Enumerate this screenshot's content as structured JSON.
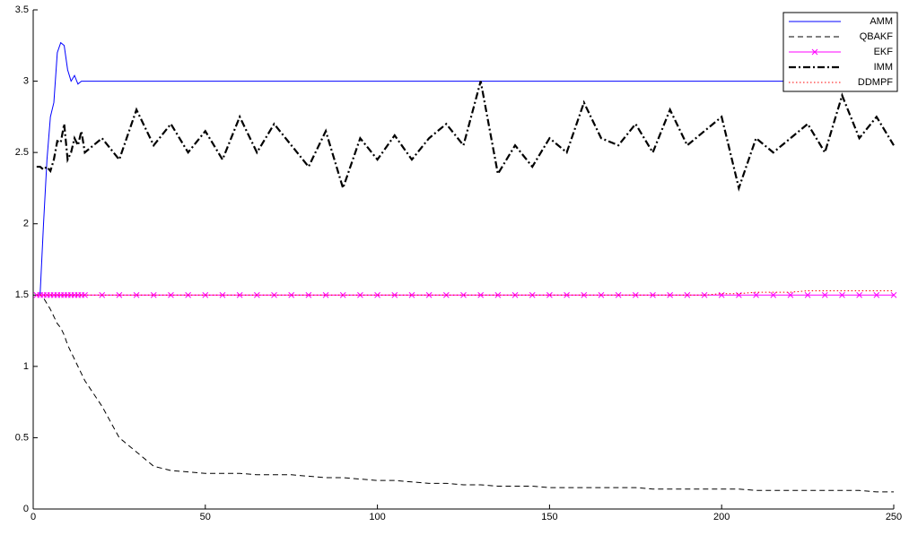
{
  "chart_data": {
    "type": "line",
    "x": [
      1,
      2,
      3,
      4,
      5,
      6,
      7,
      8,
      9,
      10,
      11,
      12,
      13,
      14,
      15,
      20,
      25,
      30,
      35,
      40,
      45,
      50,
      55,
      60,
      65,
      70,
      75,
      80,
      85,
      90,
      95,
      100,
      105,
      110,
      115,
      120,
      125,
      130,
      135,
      140,
      145,
      150,
      155,
      160,
      165,
      170,
      175,
      180,
      185,
      190,
      195,
      200,
      205,
      210,
      215,
      220,
      225,
      230,
      235,
      240,
      245,
      250
    ],
    "series": [
      {
        "name": "AMM",
        "color": "#0000ff",
        "style": "solid",
        "values": [
          1.5,
          1.5,
          2.0,
          2.45,
          2.75,
          2.85,
          3.2,
          3.27,
          3.25,
          3.08,
          3.0,
          3.04,
          2.98,
          3.0,
          3.0,
          3.0,
          3.0,
          3.0,
          3.0,
          3.0,
          3.0,
          3.0,
          3.0,
          3.0,
          3.0,
          3.0,
          3.0,
          3.0,
          3.0,
          3.0,
          3.0,
          3.0,
          3.0,
          3.0,
          3.0,
          3.0,
          3.0,
          3.0,
          3.0,
          3.0,
          3.0,
          3.0,
          3.0,
          3.0,
          3.0,
          3.0,
          3.0,
          3.0,
          3.0,
          3.0,
          3.0,
          3.0,
          3.0,
          3.0,
          3.0,
          3.0,
          3.0,
          3.0,
          3.0,
          3.0,
          3.0,
          3.0
        ]
      },
      {
        "name": "QBAKF",
        "color": "#000000",
        "style": "dashed",
        "values": [
          1.5,
          1.5,
          1.48,
          1.44,
          1.4,
          1.35,
          1.3,
          1.27,
          1.22,
          1.15,
          1.1,
          1.05,
          1.0,
          0.95,
          0.9,
          0.72,
          0.5,
          0.4,
          0.3,
          0.27,
          0.26,
          0.25,
          0.25,
          0.25,
          0.24,
          0.24,
          0.24,
          0.23,
          0.22,
          0.22,
          0.21,
          0.2,
          0.2,
          0.19,
          0.18,
          0.18,
          0.17,
          0.17,
          0.16,
          0.16,
          0.16,
          0.15,
          0.15,
          0.15,
          0.15,
          0.15,
          0.15,
          0.14,
          0.14,
          0.14,
          0.14,
          0.14,
          0.14,
          0.13,
          0.13,
          0.13,
          0.13,
          0.13,
          0.13,
          0.13,
          0.12,
          0.12
        ]
      },
      {
        "name": "EKF",
        "color": "#ff00ff",
        "style": "solid",
        "marker": "x",
        "values": [
          1.5,
          1.5,
          1.5,
          1.5,
          1.5,
          1.5,
          1.5,
          1.5,
          1.5,
          1.5,
          1.5,
          1.5,
          1.5,
          1.5,
          1.5,
          1.5,
          1.5,
          1.5,
          1.5,
          1.5,
          1.5,
          1.5,
          1.5,
          1.5,
          1.5,
          1.5,
          1.5,
          1.5,
          1.5,
          1.5,
          1.5,
          1.5,
          1.5,
          1.5,
          1.5,
          1.5,
          1.5,
          1.5,
          1.5,
          1.5,
          1.5,
          1.5,
          1.5,
          1.5,
          1.5,
          1.5,
          1.5,
          1.5,
          1.5,
          1.5,
          1.5,
          1.5,
          1.5,
          1.5,
          1.5,
          1.5,
          1.5,
          1.5,
          1.5,
          1.5,
          1.5,
          1.5
        ]
      },
      {
        "name": "IMM",
        "color": "#000000",
        "style": "dashdot",
        "values": [
          2.4,
          2.4,
          2.38,
          2.4,
          2.37,
          2.45,
          2.58,
          2.57,
          2.7,
          2.45,
          2.5,
          2.6,
          2.55,
          2.65,
          2.5,
          2.6,
          2.45,
          2.8,
          2.55,
          2.7,
          2.5,
          2.65,
          2.45,
          2.75,
          2.5,
          2.7,
          2.55,
          2.4,
          2.65,
          2.25,
          2.6,
          2.45,
          2.62,
          2.45,
          2.6,
          2.7,
          2.55,
          3.0,
          2.35,
          2.55,
          2.4,
          2.6,
          2.5,
          2.85,
          2.6,
          2.55,
          2.7,
          2.5,
          2.8,
          2.55,
          2.65,
          2.75,
          2.25,
          2.6,
          2.5,
          2.6,
          2.7,
          2.5,
          2.9,
          2.6,
          2.75,
          2.55
        ]
      },
      {
        "name": "DDMPF",
        "color": "#ff0000",
        "style": "dotted",
        "values": [
          1.5,
          1.5,
          1.5,
          1.5,
          1.5,
          1.5,
          1.5,
          1.5,
          1.5,
          1.5,
          1.5,
          1.5,
          1.5,
          1.5,
          1.5,
          1.5,
          1.5,
          1.5,
          1.5,
          1.5,
          1.5,
          1.5,
          1.5,
          1.5,
          1.5,
          1.5,
          1.5,
          1.5,
          1.5,
          1.5,
          1.5,
          1.5,
          1.5,
          1.5,
          1.5,
          1.5,
          1.5,
          1.5,
          1.5,
          1.5,
          1.5,
          1.5,
          1.5,
          1.5,
          1.5,
          1.5,
          1.5,
          1.5,
          1.5,
          1.5,
          1.5,
          1.51,
          1.51,
          1.52,
          1.52,
          1.52,
          1.53,
          1.53,
          1.53,
          1.53,
          1.53,
          1.53
        ]
      }
    ],
    "xlim": [
      0,
      250
    ],
    "xticks": [
      0,
      50,
      100,
      150,
      200,
      250
    ],
    "ylim": [
      0,
      3.5
    ],
    "yticks": [
      0,
      0.5,
      1,
      1.5,
      2,
      2.5,
      3,
      3.5
    ],
    "legend": "upper right"
  }
}
